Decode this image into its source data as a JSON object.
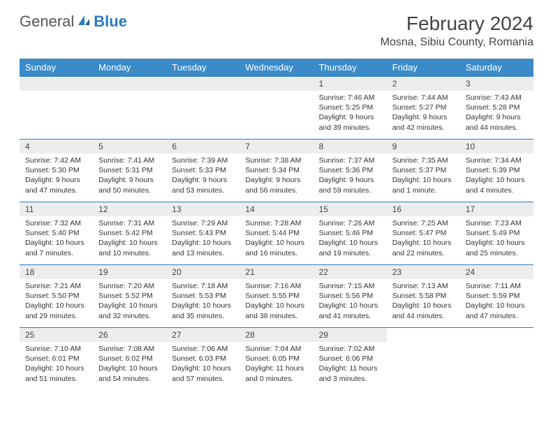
{
  "logo": {
    "general": "General",
    "blue": "Blue"
  },
  "title": "February 2024",
  "location": "Mosna, Sibiu County, Romania",
  "colors": {
    "header_bg": "#3b8bc9",
    "header_text": "#ffffff",
    "border": "#2b7bbf",
    "daynum_bg": "#ededed",
    "text": "#333333",
    "logo_accent": "#2b7bbf"
  },
  "weekdays": [
    "Sunday",
    "Monday",
    "Tuesday",
    "Wednesday",
    "Thursday",
    "Friday",
    "Saturday"
  ],
  "weeks": [
    [
      null,
      null,
      null,
      null,
      {
        "n": "1",
        "sr": "7:46 AM",
        "ss": "5:25 PM",
        "dl": "9 hours and 39 minutes."
      },
      {
        "n": "2",
        "sr": "7:44 AM",
        "ss": "5:27 PM",
        "dl": "9 hours and 42 minutes."
      },
      {
        "n": "3",
        "sr": "7:43 AM",
        "ss": "5:28 PM",
        "dl": "9 hours and 44 minutes."
      }
    ],
    [
      {
        "n": "4",
        "sr": "7:42 AM",
        "ss": "5:30 PM",
        "dl": "9 hours and 47 minutes."
      },
      {
        "n": "5",
        "sr": "7:41 AM",
        "ss": "5:31 PM",
        "dl": "9 hours and 50 minutes."
      },
      {
        "n": "6",
        "sr": "7:39 AM",
        "ss": "5:33 PM",
        "dl": "9 hours and 53 minutes."
      },
      {
        "n": "7",
        "sr": "7:38 AM",
        "ss": "5:34 PM",
        "dl": "9 hours and 56 minutes."
      },
      {
        "n": "8",
        "sr": "7:37 AM",
        "ss": "5:36 PM",
        "dl": "9 hours and 59 minutes."
      },
      {
        "n": "9",
        "sr": "7:35 AM",
        "ss": "5:37 PM",
        "dl": "10 hours and 1 minute."
      },
      {
        "n": "10",
        "sr": "7:34 AM",
        "ss": "5:39 PM",
        "dl": "10 hours and 4 minutes."
      }
    ],
    [
      {
        "n": "11",
        "sr": "7:32 AM",
        "ss": "5:40 PM",
        "dl": "10 hours and 7 minutes."
      },
      {
        "n": "12",
        "sr": "7:31 AM",
        "ss": "5:42 PM",
        "dl": "10 hours and 10 minutes."
      },
      {
        "n": "13",
        "sr": "7:29 AM",
        "ss": "5:43 PM",
        "dl": "10 hours and 13 minutes."
      },
      {
        "n": "14",
        "sr": "7:28 AM",
        "ss": "5:44 PM",
        "dl": "10 hours and 16 minutes."
      },
      {
        "n": "15",
        "sr": "7:26 AM",
        "ss": "5:46 PM",
        "dl": "10 hours and 19 minutes."
      },
      {
        "n": "16",
        "sr": "7:25 AM",
        "ss": "5:47 PM",
        "dl": "10 hours and 22 minutes."
      },
      {
        "n": "17",
        "sr": "7:23 AM",
        "ss": "5:49 PM",
        "dl": "10 hours and 25 minutes."
      }
    ],
    [
      {
        "n": "18",
        "sr": "7:21 AM",
        "ss": "5:50 PM",
        "dl": "10 hours and 29 minutes."
      },
      {
        "n": "19",
        "sr": "7:20 AM",
        "ss": "5:52 PM",
        "dl": "10 hours and 32 minutes."
      },
      {
        "n": "20",
        "sr": "7:18 AM",
        "ss": "5:53 PM",
        "dl": "10 hours and 35 minutes."
      },
      {
        "n": "21",
        "sr": "7:16 AM",
        "ss": "5:55 PM",
        "dl": "10 hours and 38 minutes."
      },
      {
        "n": "22",
        "sr": "7:15 AM",
        "ss": "5:56 PM",
        "dl": "10 hours and 41 minutes."
      },
      {
        "n": "23",
        "sr": "7:13 AM",
        "ss": "5:58 PM",
        "dl": "10 hours and 44 minutes."
      },
      {
        "n": "24",
        "sr": "7:11 AM",
        "ss": "5:59 PM",
        "dl": "10 hours and 47 minutes."
      }
    ],
    [
      {
        "n": "25",
        "sr": "7:10 AM",
        "ss": "6:01 PM",
        "dl": "10 hours and 51 minutes."
      },
      {
        "n": "26",
        "sr": "7:08 AM",
        "ss": "6:02 PM",
        "dl": "10 hours and 54 minutes."
      },
      {
        "n": "27",
        "sr": "7:06 AM",
        "ss": "6:03 PM",
        "dl": "10 hours and 57 minutes."
      },
      {
        "n": "28",
        "sr": "7:04 AM",
        "ss": "6:05 PM",
        "dl": "11 hours and 0 minutes."
      },
      {
        "n": "29",
        "sr": "7:02 AM",
        "ss": "6:06 PM",
        "dl": "11 hours and 3 minutes."
      },
      null,
      null
    ]
  ],
  "labels": {
    "sunrise": "Sunrise: ",
    "sunset": "Sunset: ",
    "daylight": "Daylight: "
  }
}
